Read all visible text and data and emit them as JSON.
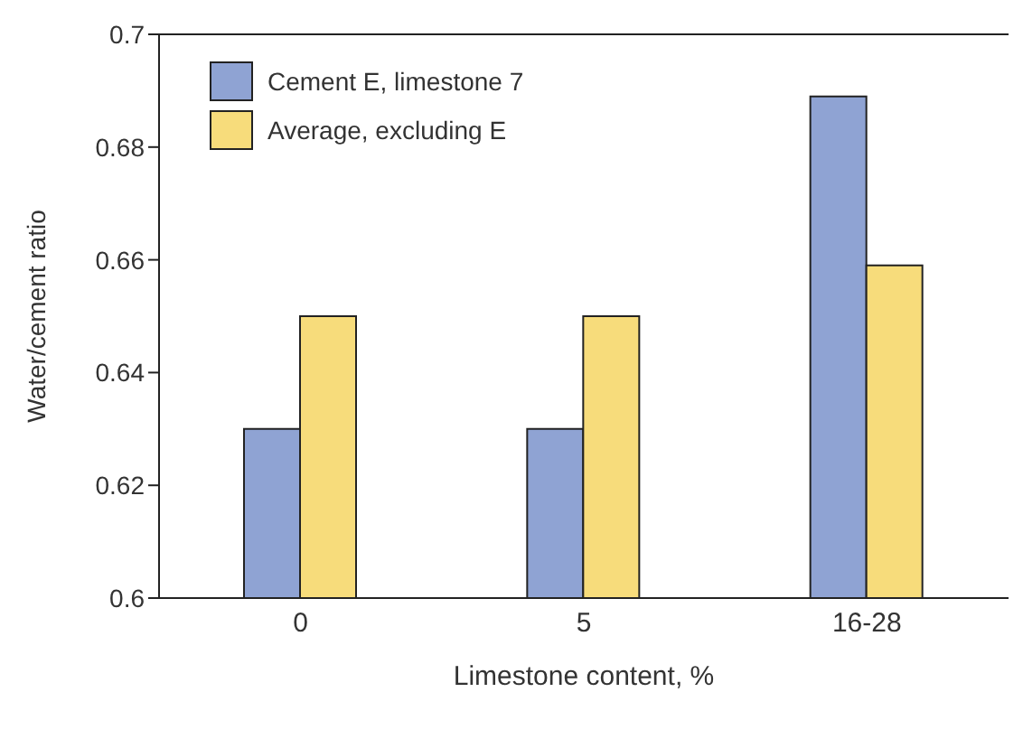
{
  "chart_data": {
    "type": "bar",
    "categories": [
      "0",
      "5",
      "16-28"
    ],
    "xlabel": "Limestone content, %",
    "ylabel": "Water/cement ratio",
    "series": [
      {
        "name": "Cement E, limestone 7",
        "color": "#8fa3d3",
        "values": [
          0.63,
          0.63,
          0.689
        ]
      },
      {
        "name": "Average, excluding E",
        "color": "#f7dc7b",
        "values": [
          0.65,
          0.65,
          0.659
        ]
      }
    ],
    "ylim": [
      0.6,
      0.7
    ],
    "yticks": [
      0.6,
      0.62,
      0.64,
      0.66,
      0.68,
      0.7
    ],
    "grid": false,
    "legend": "top left"
  }
}
